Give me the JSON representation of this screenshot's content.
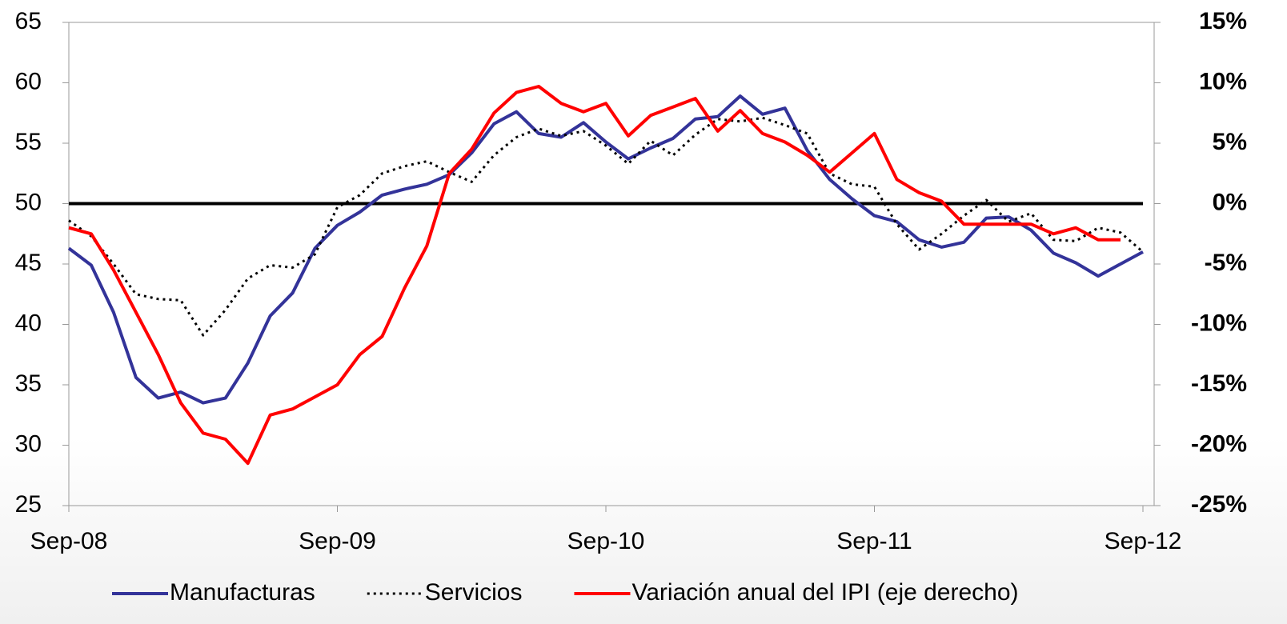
{
  "chart_data": {
    "type": "line",
    "categories": [
      "Sep-08",
      null,
      null,
      null,
      null,
      null,
      null,
      null,
      null,
      null,
      null,
      null,
      "Sep-09",
      null,
      null,
      null,
      null,
      null,
      null,
      null,
      null,
      null,
      null,
      null,
      "Sep-10",
      null,
      null,
      null,
      null,
      null,
      null,
      null,
      null,
      null,
      null,
      null,
      "Sep-11",
      null,
      null,
      null,
      null,
      null,
      null,
      null,
      null,
      null,
      null,
      null,
      "Sep-12"
    ],
    "series": [
      {
        "name": "Manufacturas",
        "color": "#333399",
        "dash": "solid",
        "values": [
          46.3,
          44.9,
          41,
          35.6,
          33.9,
          34.4,
          33.5,
          33.9,
          36.8,
          40.7,
          42.6,
          46.3,
          48.2,
          49.3,
          50.7,
          51.2,
          51.6,
          52.4,
          54.2,
          56.6,
          57.6,
          55.8,
          55.5,
          56.7,
          55.1,
          53.7,
          54.6,
          55.4,
          57.0,
          57.2,
          58.9,
          57.4,
          57.9,
          54.4,
          52.0,
          50.4,
          49.0,
          48.5,
          47.0,
          46.4,
          46.8,
          48.8,
          48.9,
          47.8,
          45.9,
          45.1,
          44.0,
          45.0,
          46.0
        ]
      },
      {
        "name": "Servicios",
        "color": "#000000",
        "dash": "dotted",
        "values": [
          48.6,
          47.3,
          45,
          42.5,
          42.1,
          42.0,
          39.1,
          41.2,
          43.8,
          44.9,
          44.7,
          45.8,
          49.7,
          50.7,
          52.5,
          53.1,
          53.5,
          52.6,
          51.8,
          54.0,
          55.5,
          56.2,
          55.6,
          56.0,
          54.8,
          53.3,
          55.2,
          54.0,
          55.7,
          57.0,
          56.8,
          57.1,
          56.5,
          55.8,
          52.5,
          51.6,
          51.4,
          48.3,
          46.2,
          47.5,
          49.0,
          50.3,
          48.5,
          49.2,
          47.0,
          46.9,
          48.0,
          47.6,
          46.0
        ]
      },
      {
        "name": "Variación anual del IPI (eje derecho)",
        "color": "#ff0000",
        "dash": "solid",
        "axis": "y2",
        "values": [
          -2,
          -2.5,
          -5.5,
          -9,
          -12.5,
          -16.5,
          -19,
          -19.5,
          -21.5,
          -17.5,
          -17,
          -16,
          -15,
          -12.5,
          -11,
          -7,
          -3.5,
          2.5,
          4.5,
          7.5,
          9.2,
          9.7,
          8.3,
          7.6,
          8.3,
          5.6,
          7.3,
          8,
          8.7,
          6,
          7.7,
          5.8,
          5.1,
          4.0,
          2.6,
          4.2,
          5.8,
          2,
          0.9,
          0.2,
          -1.7,
          -1.7,
          -1.7,
          -1.7,
          -2.5,
          -2,
          -3,
          -3,
          null
        ]
      }
    ],
    "ylim": [
      25,
      65
    ],
    "yticks": [
      25,
      30,
      35,
      40,
      45,
      50,
      55,
      60,
      65
    ],
    "y2lim": [
      -25,
      15
    ],
    "y2ticks": [
      {
        "value": -25,
        "label": "-25%"
      },
      {
        "value": -20,
        "label": "-20%"
      },
      {
        "value": -15,
        "label": "-15%"
      },
      {
        "value": -10,
        "label": "-10%"
      },
      {
        "value": -5,
        "label": "-5%"
      },
      {
        "value": 0,
        "label": "0%"
      },
      {
        "value": 5,
        "label": "5%"
      },
      {
        "value": 10,
        "label": "10%"
      },
      {
        "value": 15,
        "label": "15%"
      }
    ],
    "y2color": "#ff0000",
    "reference_line": 50,
    "legend": "bottom"
  }
}
